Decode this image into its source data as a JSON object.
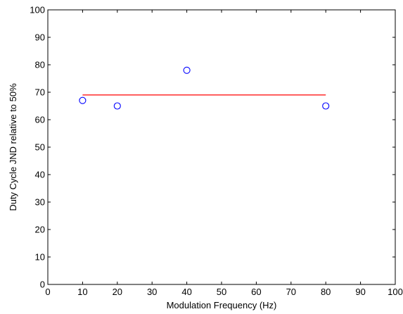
{
  "chart_data": {
    "type": "scatter",
    "title": "",
    "xlabel": "Modulation Frequency (Hz)",
    "ylabel": "Duty Cycle JND relative to 50%",
    "xlim": [
      0,
      100
    ],
    "ylim": [
      0,
      100
    ],
    "xticks": [
      0,
      10,
      20,
      30,
      40,
      50,
      60,
      70,
      80,
      90,
      100
    ],
    "yticks": [
      0,
      10,
      20,
      30,
      40,
      50,
      60,
      70,
      80,
      90,
      100
    ],
    "xtick_labels": [
      "0",
      "10",
      "20",
      "30",
      "40",
      "50",
      "60",
      "70",
      "80",
      "90",
      "100"
    ],
    "ytick_labels": [
      "0",
      "10",
      "20",
      "30",
      "40",
      "50",
      "60",
      "70",
      "80",
      "90",
      "100"
    ],
    "grid": false,
    "series": [
      {
        "type": "scatter",
        "marker": "open-circle",
        "color": "#0000ff",
        "x": [
          10,
          20,
          40,
          80
        ],
        "y": [
          67,
          65,
          78,
          65
        ]
      },
      {
        "type": "line",
        "color": "#ff0000",
        "x": [
          10,
          80
        ],
        "y": [
          69,
          69
        ]
      }
    ]
  }
}
